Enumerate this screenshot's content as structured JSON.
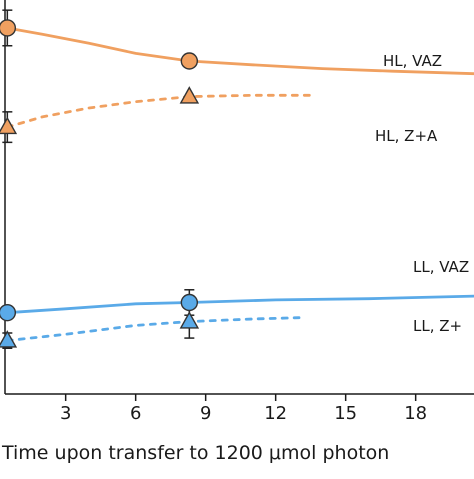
{
  "chart_data": {
    "type": "line",
    "title": "",
    "xlabel": "Time upon transfer to 1200 μmol photon",
    "ylabel": "",
    "xlim": [
      0.4,
      20.5
    ],
    "ylim": [
      0,
      15.5
    ],
    "xticks": [
      3,
      6,
      9,
      12,
      15,
      18
    ],
    "xtick_labels": [
      "3",
      "6",
      "9",
      "12",
      "15",
      "18"
    ],
    "grid": false,
    "series": [
      {
        "name": "HL, VAZ",
        "color": "#f0a060",
        "marker": "circle",
        "line_style": "solid",
        "points": [
          {
            "x": 0.5,
            "y": 14.4,
            "err": 0.7
          },
          {
            "x": 8.3,
            "y": 13.1,
            "err": 0.0
          }
        ],
        "curve": [
          {
            "x": 0.5,
            "y": 14.4
          },
          {
            "x": 2,
            "y": 14.15
          },
          {
            "x": 4,
            "y": 13.8
          },
          {
            "x": 6,
            "y": 13.4
          },
          {
            "x": 8.3,
            "y": 13.1
          },
          {
            "x": 11,
            "y": 12.95
          },
          {
            "x": 14,
            "y": 12.8
          },
          {
            "x": 17,
            "y": 12.7
          },
          {
            "x": 20.5,
            "y": 12.6
          }
        ]
      },
      {
        "name": "HL, Z+A",
        "color": "#f0a060",
        "marker": "triangle",
        "line_style": "dashed",
        "points": [
          {
            "x": 0.5,
            "y": 10.5,
            "err": 0.6
          },
          {
            "x": 8.3,
            "y": 11.7,
            "err": 0.0
          }
        ],
        "curve": [
          {
            "x": 0.5,
            "y": 10.5
          },
          {
            "x": 2,
            "y": 10.9
          },
          {
            "x": 4,
            "y": 11.25
          },
          {
            "x": 6,
            "y": 11.5
          },
          {
            "x": 8.3,
            "y": 11.7
          },
          {
            "x": 11,
            "y": 11.75
          },
          {
            "x": 13.5,
            "y": 11.75
          }
        ]
      },
      {
        "name": "LL, VAZ",
        "color": "#5aaae8",
        "marker": "circle",
        "line_style": "solid",
        "points": [
          {
            "x": 0.5,
            "y": 3.2,
            "err": 0.0
          },
          {
            "x": 8.3,
            "y": 3.6,
            "err": 0.5
          }
        ],
        "curve": [
          {
            "x": 0.5,
            "y": 3.2
          },
          {
            "x": 3,
            "y": 3.35
          },
          {
            "x": 6,
            "y": 3.55
          },
          {
            "x": 8.3,
            "y": 3.6
          },
          {
            "x": 12,
            "y": 3.7
          },
          {
            "x": 16,
            "y": 3.75
          },
          {
            "x": 20.5,
            "y": 3.85
          }
        ]
      },
      {
        "name": "LL, Z+",
        "color": "#5aaae8",
        "marker": "triangle",
        "line_style": "dashed",
        "points": [
          {
            "x": 0.5,
            "y": 2.1,
            "err": 0.3
          },
          {
            "x": 8.3,
            "y": 2.85,
            "err": 0.65
          }
        ],
        "curve": [
          {
            "x": 0.5,
            "y": 2.1
          },
          {
            "x": 3,
            "y": 2.35
          },
          {
            "x": 6,
            "y": 2.7
          },
          {
            "x": 8.3,
            "y": 2.85
          },
          {
            "x": 11,
            "y": 2.95
          },
          {
            "x": 13,
            "y": 3.0
          }
        ]
      }
    ],
    "annotations": [
      {
        "text": "HL, VAZ",
        "series": 0
      },
      {
        "text": "HL, Z+A",
        "series": 1
      },
      {
        "text": "LL, VAZ",
        "series": 2
      },
      {
        "text": "LL, Z+",
        "series": 3
      }
    ]
  }
}
